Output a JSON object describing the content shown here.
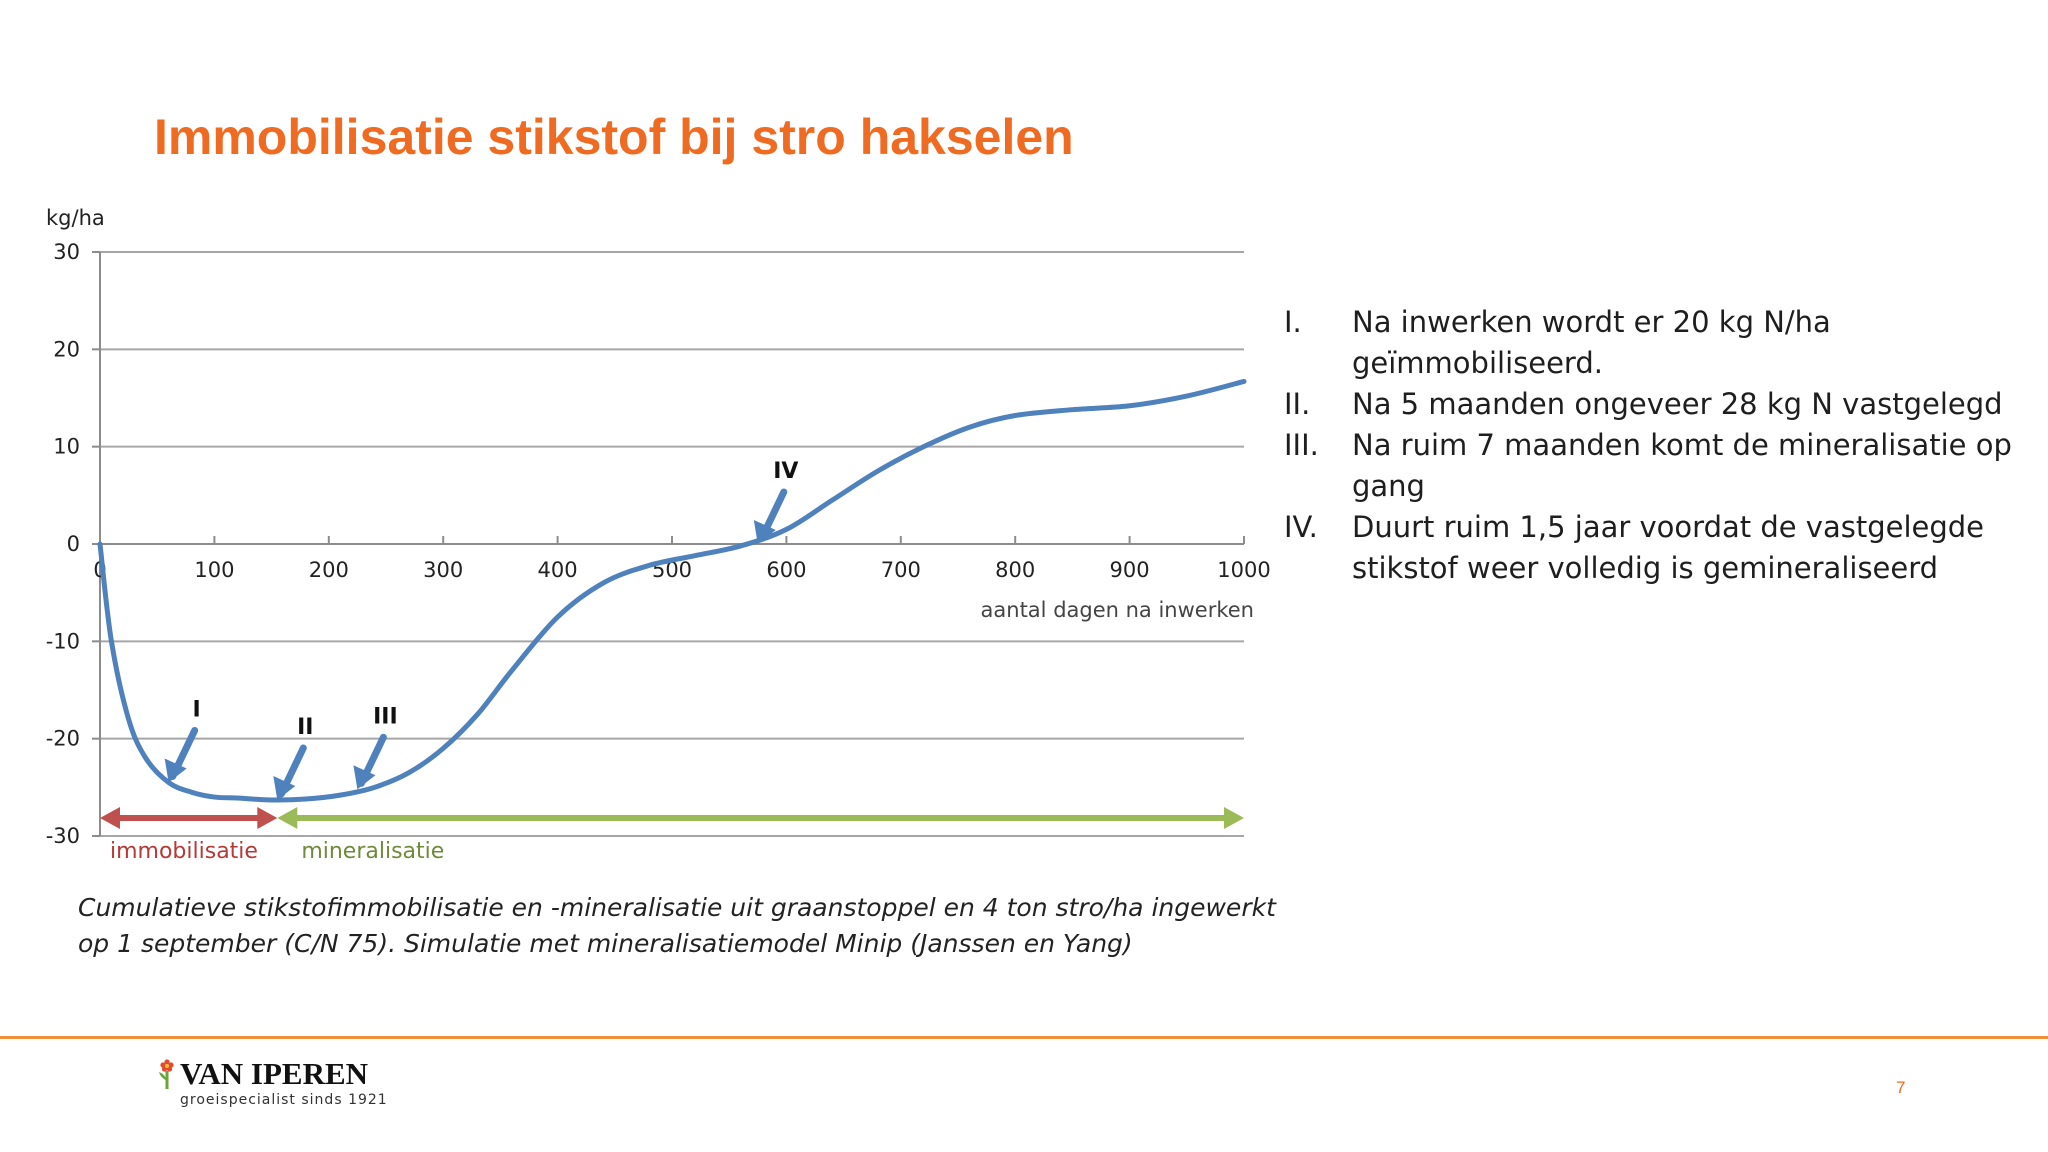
{
  "slide": {
    "title": "Immobilisatie stikstof bij stro hakselen",
    "page_number": "7",
    "accent_color": "#f06b22"
  },
  "caption": {
    "line1": "Cumulatieve stikstofimmobilisatie en -mineralisatie uit graanstoppel en 4 ton stro/ha ingewerkt",
    "line2": "op 1 september (C/N 75). Simulatie met mineralisatiemodel Minip (Janssen en Yang)"
  },
  "notes": [
    {
      "num": "I.",
      "text": "Na inwerken wordt er 20 kg N/ha geïmmobiliseerd."
    },
    {
      "num": "II.",
      "text": "Na 5 maanden ongeveer 28 kg N vastgelegd"
    },
    {
      "num": "III.",
      "text": "Na ruim 7 maanden komt de mineralisatie op gang"
    },
    {
      "num": "IV.",
      "text": "Duurt ruim 1,5 jaar voordat de vastgelegde stikstof weer volledig is gemineraliseerd"
    }
  ],
  "logo": {
    "name": "VAN IPEREN",
    "tagline": "groeispecialist sinds 1921"
  },
  "chart_data": {
    "type": "line",
    "ylabel": "kg/ha",
    "xlabel": "aantal dagen na inwerken",
    "xlim": [
      0,
      1000
    ],
    "ylim": [
      -30,
      30
    ],
    "x_ticks": [
      0,
      100,
      200,
      300,
      400,
      500,
      600,
      700,
      800,
      900,
      1000
    ],
    "y_ticks": [
      30,
      20,
      10,
      0,
      -10,
      -20,
      -30
    ],
    "grid": true,
    "line_color": "#4f81bd",
    "series": [
      {
        "x": [
          0,
          10,
          25,
          40,
          60,
          80,
          100,
          120,
          150,
          180,
          210,
          240,
          270,
          300,
          330,
          360,
          400,
          440,
          480,
          520,
          560,
          600,
          640,
          680,
          720,
          760,
          800,
          850,
          900,
          950,
          1000
        ],
        "values": [
          0,
          -10,
          -18,
          -22,
          -24.5,
          -25.5,
          -26,
          -26.1,
          -26.3,
          -26.2,
          -25.8,
          -25,
          -23.5,
          -21,
          -17.5,
          -13,
          -7.5,
          -4,
          -2.2,
          -1.2,
          -0.2,
          1.5,
          4.5,
          7.5,
          10,
          12,
          13.2,
          13.8,
          14.2,
          15.2,
          16.7
        ]
      }
    ],
    "annotations": [
      {
        "label": "I",
        "x": 60,
        "y": -24.5
      },
      {
        "label": "II",
        "x": 155,
        "y": -26.3
      },
      {
        "label": "III",
        "x": 225,
        "y": -25.2
      },
      {
        "label": "IV",
        "x": 575,
        "y": 0
      }
    ],
    "phases": [
      {
        "label": "immobilisatie",
        "from": 0,
        "to": 155,
        "color": "#c0504d"
      },
      {
        "label": "mineralisatie",
        "from": 155,
        "to": 1000,
        "color": "#9bbb59"
      }
    ]
  }
}
